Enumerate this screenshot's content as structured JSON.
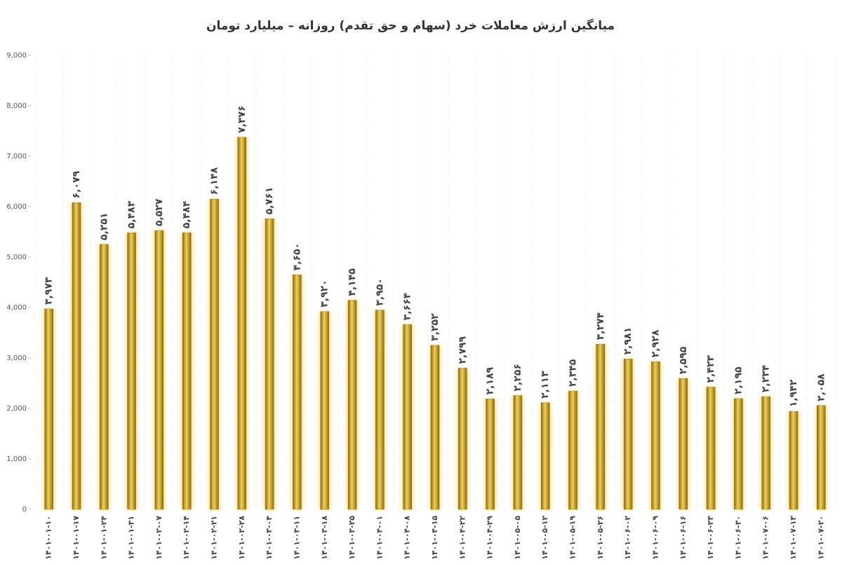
{
  "chart_data": {
    "type": "bar",
    "title": "میانگین ارزش معاملات خرد (سهام و حق تقدم) روزانه – میلیارد تومان",
    "categories": [
      "۱۴۰۱-۰۱-۱۰",
      "۱۴۰۱-۰۱-۱۷",
      "۱۴۰۱-۰۱-۲۴",
      "۱۴۰۱-۰۱-۳۱",
      "۱۴۰۱-۰۲-۰۷",
      "۱۴۰۱-۰۲-۱۴",
      "۱۴۰۱-۰۲-۲۱",
      "۱۴۰۱-۰۲-۲۸",
      "۱۴۰۱-۰۳-۰۴",
      "۱۴۰۱-۰۳-۱۱",
      "۱۴۰۱-۰۳-۱۸",
      "۱۴۰۱-۰۳-۲۵",
      "۱۴۰۱-۰۴-۰۱",
      "۱۴۰۱-۰۴-۰۸",
      "۱۴۰۱-۰۴-۱۵",
      "۱۴۰۱-۰۴-۲۲",
      "۱۴۰۱-۰۴-۲۹",
      "۱۴۰۱-۰۵-۰۵",
      "۱۴۰۱-۰۵-۱۲",
      "۱۴۰۱-۰۵-۱۹",
      "۱۴۰۱-۰۵-۲۶",
      "۱۴۰۱-۰۶-۰۲",
      "۱۴۰۱-۰۶-۰۹",
      "۱۴۰۱-۰۶-۱۶",
      "۱۴۰۱-۰۶-۲۳",
      "۱۴۰۱-۰۶-۳۰",
      "۱۴۰۱-۰۷-۰۶",
      "۱۴۰۱-۰۷-۱۳",
      "۱۴۰۱-۰۷-۲۰"
    ],
    "values": [
      3973,
      6079,
      5251,
      5483,
      5527,
      5484,
      6148,
      7376,
      5761,
      4650,
      3920,
      4145,
      3950,
      3664,
      3252,
      2799,
      2189,
      2256,
      2113,
      2345,
      3274,
      2981,
      2928,
      2595,
      2423,
      2195,
      2234,
      1942,
      2058
    ],
    "value_labels": [
      "۳,۹۷۳",
      "۶,۰۷۹",
      "۵,۲۵۱",
      "۵,۴۸۳",
      "۵,۵۲۷",
      "۵,۴۸۴",
      "۶,۱۴۸",
      "۷,۳۷۶",
      "۵,۷۶۱",
      "۴,۶۵۰",
      "۳,۹۲۰",
      "۴,۱۴۵",
      "۳,۹۵۰",
      "۳,۶۶۴",
      "۳,۲۵۲",
      "۲,۷۹۹",
      "۲,۱۸۹",
      "۲,۲۵۶",
      "۲,۱۱۳",
      "۲,۳۴۵",
      "۳,۲۷۴",
      "۲,۹۸۱",
      "۲,۹۲۸",
      "۲,۵۹۵",
      "۲,۴۲۳",
      "۲,۱۹۵",
      "۲,۲۳۴",
      "۱,۹۴۲",
      "۲,۰۵۸"
    ],
    "color": "#c99a10",
    "ylim": [
      0,
      9000
    ],
    "yticks": [
      0,
      {
        "value": 1000,
        "label": "1,000"
      },
      {
        "value": 2000,
        "label": "2,000"
      },
      {
        "value": 3000,
        "label": "3,000"
      },
      {
        "value": 4000,
        "label": "4,000"
      },
      {
        "value": 5000,
        "label": "5,000"
      },
      {
        "value": 6000,
        "label": "6,000"
      },
      {
        "value": 7000,
        "label": "7,000"
      },
      {
        "value": 8000,
        "label": "8,000"
      },
      {
        "value": 9000,
        "label": "9,000"
      }
    ]
  }
}
